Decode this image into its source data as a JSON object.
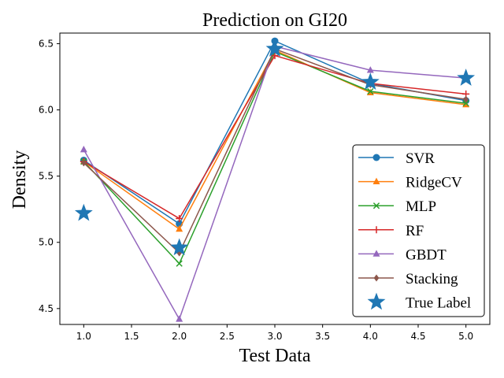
{
  "chart_data": {
    "type": "line",
    "title": "Prediction on GI20",
    "xlabel": "Test Data",
    "ylabel": "Density",
    "xlim": [
      0.75,
      5.25
    ],
    "ylim": [
      4.38,
      6.58
    ],
    "xticks": [
      1.0,
      1.5,
      2.0,
      2.5,
      3.0,
      3.5,
      4.0,
      4.5,
      5.0
    ],
    "xtick_labels": [
      "1.0",
      "1.5",
      "2.0",
      "2.5",
      "3.0",
      "3.5",
      "4.0",
      "4.5",
      "5.0"
    ],
    "yticks": [
      4.5,
      5.0,
      5.5,
      6.0,
      6.5
    ],
    "ytick_labels": [
      "4.5",
      "5.0",
      "5.5",
      "6.0",
      "6.5"
    ],
    "grid": false,
    "legend_position": "lower-right",
    "x": [
      1,
      2,
      3,
      4,
      5
    ],
    "series": [
      {
        "name": "SVR",
        "color": "#1f77b4",
        "marker": "circle",
        "values": [
          5.62,
          5.14,
          6.52,
          6.2,
          6.07
        ]
      },
      {
        "name": "RidgeCV",
        "color": "#ff7f0e",
        "marker": "triangle",
        "values": [
          5.61,
          5.1,
          6.45,
          6.13,
          6.04
        ]
      },
      {
        "name": "MLP",
        "color": "#2ca02c",
        "marker": "x",
        "values": [
          5.61,
          4.84,
          6.44,
          6.14,
          6.05
        ]
      },
      {
        "name": "RF",
        "color": "#d62728",
        "marker": "plus",
        "values": [
          5.61,
          5.18,
          6.41,
          6.2,
          6.12
        ]
      },
      {
        "name": "GBDT",
        "color": "#9467bd",
        "marker": "triangle",
        "values": [
          5.7,
          4.42,
          6.48,
          6.3,
          6.24
        ]
      },
      {
        "name": "Stacking",
        "color": "#8c564b",
        "marker": "diamond",
        "values": [
          5.6,
          4.92,
          6.46,
          6.19,
          6.08
        ]
      }
    ],
    "true_label": {
      "name": "True Label",
      "color": "#1f77b4",
      "marker": "star",
      "values": [
        5.22,
        4.96,
        6.46,
        6.21,
        6.24
      ]
    }
  }
}
